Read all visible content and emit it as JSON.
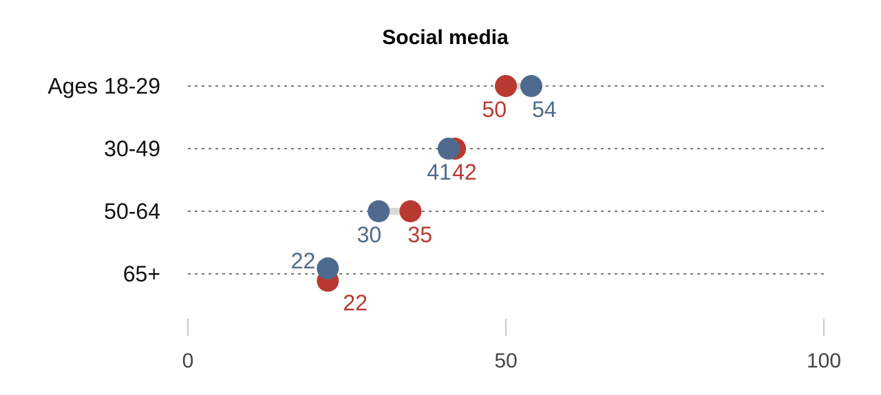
{
  "chart_data": {
    "type": "dot-plot",
    "title": "Social media",
    "categories": [
      "Ages 18-29",
      "30-49",
      "50-64",
      "65+"
    ],
    "series": [
      {
        "name": "red",
        "color": "#b8392f",
        "values": [
          50,
          42,
          35,
          22
        ]
      },
      {
        "name": "blue",
        "color": "#4e6a8e",
        "values": [
          54,
          41,
          30,
          22
        ]
      }
    ],
    "xlim": [
      0,
      100
    ],
    "xticks": [
      0,
      50,
      100
    ],
    "xtick_labels": [
      "0",
      "50",
      "100"
    ],
    "grid": "dotted horizontal per row"
  }
}
